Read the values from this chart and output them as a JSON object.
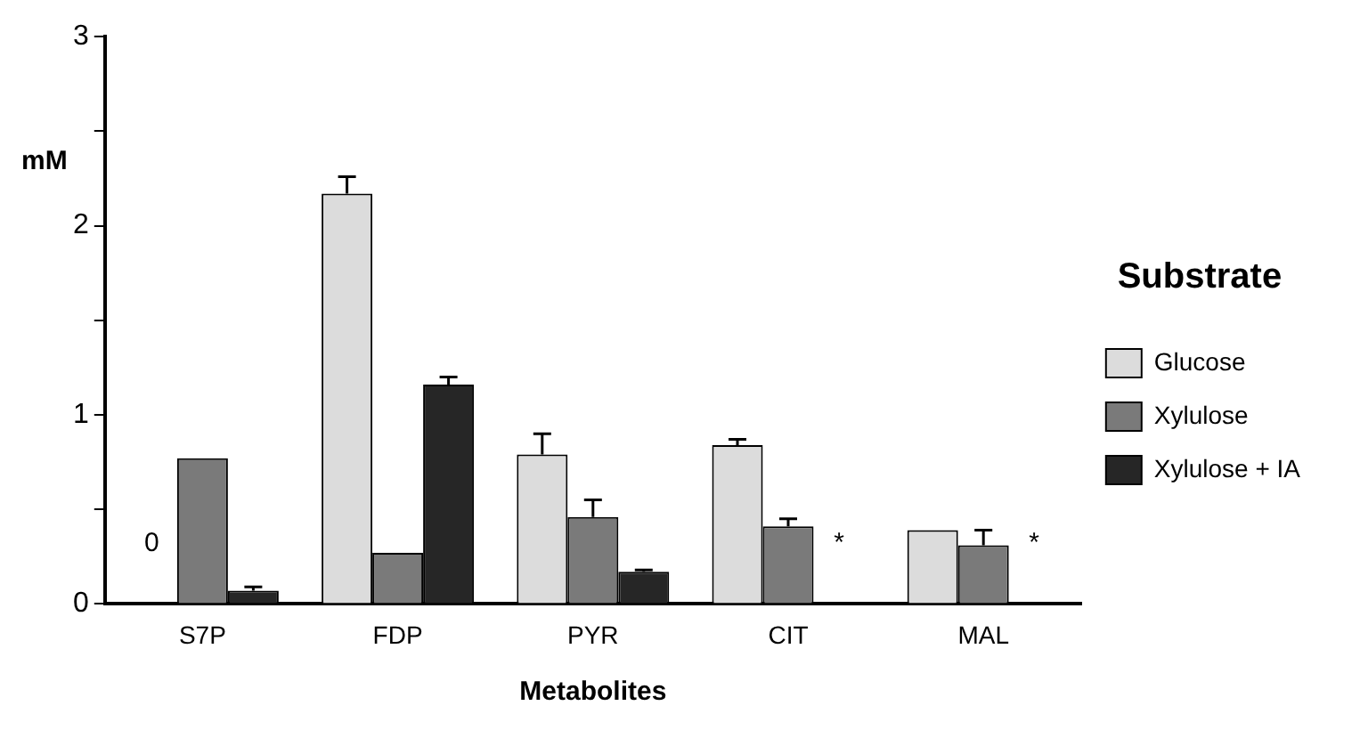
{
  "chart_data": {
    "type": "bar",
    "xlabel": "Metabolites",
    "ylabel": "mM",
    "legend_title": "Substrate",
    "legend": "right",
    "categories": [
      "S7P",
      "FDP",
      "PYR",
      "CIT",
      "MAL"
    ],
    "ylim": [
      0,
      3
    ],
    "yticks": [
      0,
      {
        "value": 0.5,
        "label": null
      },
      1,
      {
        "value": 1.5,
        "label": null
      },
      2,
      {
        "value": 2.5,
        "label": null
      },
      3
    ],
    "grid": false,
    "series": [
      {
        "name": "Glucose",
        "color": "#dcdcdc",
        "values": [
          0,
          2.17,
          0.79,
          0.84,
          0.39
        ],
        "errors": [
          null,
          0.09,
          0.11,
          0.03,
          null
        ]
      },
      {
        "name": "Xylulose",
        "color": "#7a7a7a",
        "values": [
          0.77,
          0.27,
          0.46,
          0.41,
          0.31
        ],
        "errors": [
          null,
          null,
          0.09,
          0.04,
          0.08
        ]
      },
      {
        "name": "Xylulose + IA",
        "color": "#262626",
        "values": [
          0.07,
          1.16,
          0.17,
          null,
          null
        ],
        "errors": [
          0.02,
          0.04,
          0.01,
          null,
          null
        ]
      }
    ],
    "annotations": [
      "0",
      "*",
      "*"
    ]
  }
}
